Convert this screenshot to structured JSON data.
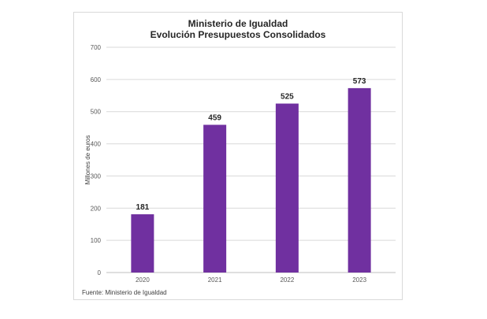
{
  "chart_data": {
    "type": "bar",
    "title": "Ministerio de Igualdad",
    "subtitle": "Evolución Presupuestos Consolidados",
    "xlabel": "",
    "ylabel": "Millones de euros",
    "categories": [
      "2020",
      "2021",
      "2022",
      "2023"
    ],
    "values": [
      181,
      459,
      525,
      573
    ],
    "ylim": [
      0,
      700
    ],
    "yticks": [
      0,
      100,
      200,
      300,
      400,
      500,
      600,
      700
    ],
    "grid": true,
    "legend": "none",
    "bar_color": "#7030a0",
    "source": "Fuente: Ministerio de Igualdad"
  }
}
